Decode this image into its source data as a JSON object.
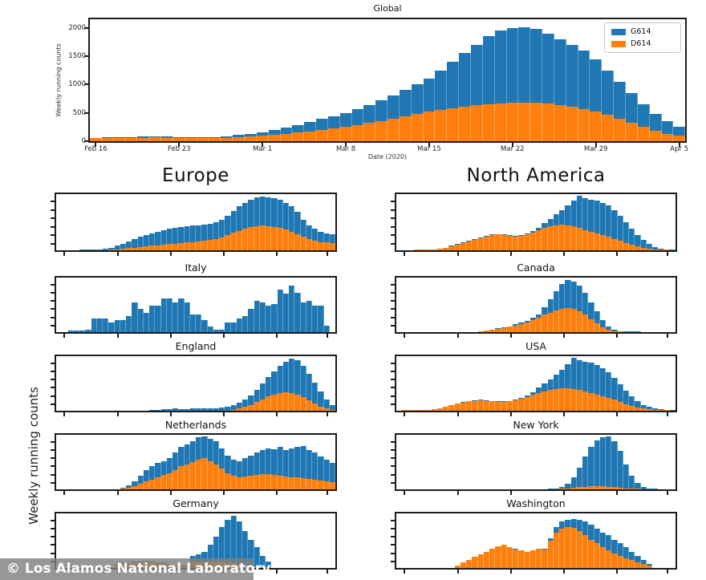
{
  "figure": {
    "watermark": "© Los Alamos National Laboratory",
    "shared_ylabel": "Weekly running counts",
    "colors": {
      "g614": "#1f77b4",
      "d614": "#ff7f0e"
    },
    "legend": {
      "position": "upper right",
      "items": [
        {
          "label": "G614",
          "color": "#1f77b4"
        },
        {
          "label": "D614",
          "color": "#ff7f0e"
        }
      ]
    }
  },
  "chart_data": [
    {
      "title": "Global",
      "type": "bar",
      "stacked": true,
      "xlabel": "Date (2020)",
      "ylabel": "Weekly running counts",
      "x_ticks": [
        "Feb 16",
        "Feb 23",
        "Mar 1",
        "Mar 8",
        "Mar 15",
        "Mar 22",
        "Mar 29",
        "Apr 5"
      ],
      "y_ticks": [
        0,
        500,
        1000,
        1500,
        2000
      ],
      "ymax": 2150,
      "grid": false,
      "series_names": [
        "G614 (top segment = total - D614)",
        "D614 (bottom segment)"
      ],
      "total": [
        60,
        65,
        70,
        75,
        80,
        85,
        80,
        75,
        70,
        70,
        75,
        90,
        110,
        130,
        160,
        200,
        240,
        290,
        340,
        390,
        440,
        500,
        560,
        640,
        720,
        800,
        900,
        1000,
        1100,
        1250,
        1400,
        1550,
        1700,
        1850,
        1950,
        2000,
        2010,
        1980,
        1900,
        1800,
        1700,
        1600,
        1450,
        1250,
        1050,
        850,
        650,
        480,
        350,
        250
      ],
      "d614": [
        50,
        55,
        58,
        60,
        62,
        64,
        62,
        58,
        55,
        52,
        52,
        60,
        70,
        80,
        95,
        110,
        130,
        150,
        175,
        200,
        230,
        260,
        290,
        320,
        360,
        400,
        440,
        480,
        520,
        555,
        585,
        610,
        630,
        650,
        665,
        675,
        680,
        675,
        660,
        640,
        610,
        570,
        520,
        460,
        390,
        320,
        250,
        185,
        130,
        95
      ]
    },
    {
      "title": "Europe",
      "type": "bar",
      "stacked": true,
      "units": "normalized",
      "ymax": 1,
      "total": [
        0,
        0,
        0,
        0,
        0.01,
        0.01,
        0.02,
        0.02,
        0.03,
        0.05,
        0.08,
        0.12,
        0.16,
        0.2,
        0.24,
        0.27,
        0.3,
        0.33,
        0.36,
        0.38,
        0.4,
        0.42,
        0.43,
        0.44,
        0.45,
        0.46,
        0.47,
        0.5,
        0.55,
        0.62,
        0.7,
        0.78,
        0.84,
        0.9,
        0.94,
        0.96,
        0.95,
        0.93,
        0.9,
        0.85,
        0.78,
        0.68,
        0.55,
        0.45,
        0.38,
        0.33,
        0.3,
        0.28
      ],
      "d614": [
        0,
        0,
        0,
        0,
        0,
        0,
        0,
        0,
        0,
        0.01,
        0.02,
        0.03,
        0.04,
        0.05,
        0.06,
        0.07,
        0.08,
        0.09,
        0.1,
        0.11,
        0.12,
        0.13,
        0.14,
        0.15,
        0.16,
        0.17,
        0.18,
        0.2,
        0.23,
        0.27,
        0.31,
        0.35,
        0.38,
        0.41,
        0.43,
        0.44,
        0.43,
        0.42,
        0.4,
        0.37,
        0.33,
        0.28,
        0.24,
        0.2,
        0.17,
        0.15,
        0.14,
        0.13
      ]
    },
    {
      "title": "Italy",
      "type": "bar",
      "stacked": true,
      "units": "normalized",
      "ymax": 1,
      "total": [
        0,
        0,
        0.03,
        0.03,
        0.03,
        0.05,
        0.25,
        0.25,
        0.25,
        0.18,
        0.22,
        0.22,
        0.3,
        0.55,
        0.42,
        0.35,
        0.48,
        0.48,
        0.62,
        0.62,
        0.55,
        0.62,
        0.55,
        0.33,
        0.33,
        0.22,
        0.1,
        0.05,
        0.05,
        0.18,
        0.18,
        0.25,
        0.3,
        0.42,
        0.58,
        0.55,
        0.48,
        0.52,
        0.78,
        0.7,
        0.85,
        0.72,
        0.55,
        0.58,
        0.48,
        0.48,
        0.12,
        0
      ],
      "d614": [
        0,
        0,
        0,
        0,
        0,
        0,
        0,
        0,
        0,
        0,
        0,
        0,
        0,
        0,
        0,
        0,
        0,
        0,
        0,
        0,
        0,
        0,
        0,
        0,
        0,
        0,
        0,
        0,
        0,
        0,
        0,
        0,
        0,
        0,
        0,
        0,
        0,
        0,
        0,
        0,
        0,
        0,
        0,
        0,
        0,
        0,
        0,
        0
      ]
    },
    {
      "title": "England",
      "type": "bar",
      "stacked": true,
      "units": "normalized",
      "ymax": 1,
      "total": [
        0,
        0,
        0,
        0,
        0,
        0,
        0,
        0,
        0,
        0,
        0,
        0,
        0,
        0,
        0,
        0,
        0.02,
        0.02,
        0.03,
        0.03,
        0.04,
        0.03,
        0.03,
        0.04,
        0.04,
        0.04,
        0.05,
        0.05,
        0.06,
        0.08,
        0.1,
        0.14,
        0.2,
        0.28,
        0.38,
        0.5,
        0.62,
        0.72,
        0.82,
        0.9,
        0.95,
        0.92,
        0.82,
        0.68,
        0.52,
        0.36,
        0.2,
        0.1
      ],
      "d614": [
        0,
        0,
        0,
        0,
        0,
        0,
        0,
        0,
        0,
        0,
        0,
        0,
        0,
        0,
        0,
        0,
        0,
        0,
        0,
        0,
        0,
        0,
        0,
        0,
        0,
        0,
        0,
        0,
        0,
        0,
        0.02,
        0.04,
        0.07,
        0.11,
        0.16,
        0.21,
        0.26,
        0.3,
        0.33,
        0.34,
        0.33,
        0.3,
        0.25,
        0.19,
        0.13,
        0.08,
        0.04,
        0.02
      ]
    },
    {
      "title": "Netherlands",
      "type": "bar",
      "stacked": true,
      "units": "normalized",
      "ymax": 1,
      "total": [
        0,
        0,
        0,
        0,
        0,
        0,
        0,
        0,
        0,
        0,
        0,
        0.03,
        0.08,
        0.15,
        0.25,
        0.35,
        0.42,
        0.48,
        0.52,
        0.58,
        0.68,
        0.78,
        0.82,
        0.88,
        0.95,
        0.97,
        0.92,
        0.88,
        0.75,
        0.62,
        0.55,
        0.52,
        0.58,
        0.62,
        0.68,
        0.72,
        0.75,
        0.73,
        0.78,
        0.72,
        0.75,
        0.78,
        0.8,
        0.72,
        0.68,
        0.6,
        0.55,
        0.48
      ],
      "d614": [
        0,
        0,
        0,
        0,
        0,
        0,
        0,
        0,
        0,
        0,
        0,
        0.01,
        0.03,
        0.06,
        0.1,
        0.14,
        0.18,
        0.22,
        0.26,
        0.3,
        0.36,
        0.42,
        0.46,
        0.5,
        0.55,
        0.57,
        0.52,
        0.46,
        0.38,
        0.3,
        0.25,
        0.22,
        0.23,
        0.25,
        0.27,
        0.28,
        0.28,
        0.26,
        0.25,
        0.23,
        0.22,
        0.22,
        0.21,
        0.19,
        0.18,
        0.16,
        0.15,
        0.13
      ]
    },
    {
      "title": "Germany",
      "type": "bar",
      "stacked": true,
      "units": "normalized",
      "ymax": 1,
      "total": [
        0,
        0,
        0,
        0,
        0,
        0,
        0,
        0,
        0,
        0,
        0.08,
        0.1,
        0.11,
        0.12,
        0.12,
        0.13,
        0.12,
        0.11,
        0.1,
        0.08,
        0.05,
        0.04,
        0.04,
        0.22,
        0.25,
        0.3,
        0.42,
        0.58,
        0.75,
        0.88,
        0.95,
        0.85,
        0.68,
        0.52,
        0.38,
        0.22,
        0.12,
        0,
        0,
        0,
        0,
        0,
        0,
        0,
        0,
        0,
        0,
        0
      ],
      "d614": [
        0,
        0,
        0,
        0,
        0,
        0,
        0,
        0,
        0,
        0,
        0.07,
        0.09,
        0.1,
        0.11,
        0.11,
        0.12,
        0.11,
        0.1,
        0.09,
        0.07,
        0.04,
        0.03,
        0.03,
        0.12,
        0.12,
        0.12,
        0.12,
        0.12,
        0.12,
        0.12,
        0.11,
        0.08,
        0.05,
        0.03,
        0.02,
        0.01,
        0.01,
        0,
        0,
        0,
        0,
        0,
        0,
        0,
        0,
        0,
        0,
        0
      ]
    },
    {
      "title": "North America",
      "type": "bar",
      "stacked": true,
      "units": "normalized",
      "ymax": 1,
      "total": [
        0,
        0,
        0,
        0.01,
        0.01,
        0.02,
        0.02,
        0.03,
        0.05,
        0.08,
        0.11,
        0.14,
        0.17,
        0.2,
        0.23,
        0.26,
        0.28,
        0.29,
        0.28,
        0.27,
        0.26,
        0.27,
        0.3,
        0.34,
        0.4,
        0.48,
        0.56,
        0.64,
        0.72,
        0.8,
        0.88,
        0.97,
        0.93,
        0.9,
        0.88,
        0.85,
        0.8,
        0.72,
        0.62,
        0.5,
        0.38,
        0.27,
        0.18,
        0.11,
        0.06,
        0.03,
        0.02,
        0.01
      ],
      "d614": [
        0,
        0,
        0,
        0.01,
        0.01,
        0.02,
        0.02,
        0.03,
        0.05,
        0.07,
        0.1,
        0.13,
        0.16,
        0.19,
        0.22,
        0.25,
        0.27,
        0.28,
        0.27,
        0.26,
        0.25,
        0.26,
        0.28,
        0.32,
        0.36,
        0.4,
        0.43,
        0.45,
        0.46,
        0.45,
        0.43,
        0.4,
        0.36,
        0.33,
        0.3,
        0.27,
        0.24,
        0.2,
        0.17,
        0.13,
        0.1,
        0.07,
        0.05,
        0.03,
        0.02,
        0.01,
        0.01,
        0
      ]
    },
    {
      "title": "Canada",
      "type": "bar",
      "stacked": true,
      "units": "normalized",
      "ymax": 1,
      "total": [
        0,
        0,
        0,
        0,
        0,
        0,
        0,
        0,
        0,
        0,
        0,
        0,
        0,
        0,
        0.02,
        0.03,
        0.05,
        0.07,
        0.09,
        0.11,
        0.14,
        0.17,
        0.21,
        0.26,
        0.33,
        0.45,
        0.6,
        0.75,
        0.88,
        0.95,
        0.92,
        0.85,
        0.72,
        0.55,
        0.38,
        0.22,
        0.1,
        0.04,
        0.02,
        0.01,
        0.01,
        0.01,
        0,
        0,
        0,
        0,
        0,
        0
      ],
      "d614": [
        0,
        0,
        0,
        0,
        0,
        0,
        0,
        0,
        0,
        0,
        0,
        0,
        0,
        0,
        0.02,
        0.03,
        0.04,
        0.06,
        0.08,
        0.1,
        0.12,
        0.15,
        0.18,
        0.22,
        0.27,
        0.32,
        0.36,
        0.4,
        0.43,
        0.44,
        0.42,
        0.38,
        0.32,
        0.24,
        0.16,
        0.09,
        0.04,
        0.02,
        0.01,
        0,
        0,
        0,
        0,
        0,
        0,
        0,
        0,
        0
      ]
    },
    {
      "title": "USA",
      "type": "bar",
      "stacked": true,
      "units": "normalized",
      "ymax": 1,
      "total": [
        0,
        0.01,
        0.01,
        0.02,
        0.02,
        0.02,
        0.03,
        0.05,
        0.08,
        0.11,
        0.14,
        0.16,
        0.18,
        0.19,
        0.2,
        0.19,
        0.18,
        0.17,
        0.17,
        0.18,
        0.2,
        0.24,
        0.28,
        0.34,
        0.42,
        0.5,
        0.58,
        0.66,
        0.75,
        0.85,
        0.97,
        0.93,
        0.9,
        0.88,
        0.84,
        0.78,
        0.7,
        0.6,
        0.48,
        0.37,
        0.27,
        0.18,
        0.11,
        0.07,
        0.04,
        0.03,
        0.02,
        0.01
      ],
      "d614": [
        0,
        0.01,
        0.01,
        0.02,
        0.02,
        0.02,
        0.03,
        0.05,
        0.07,
        0.1,
        0.13,
        0.15,
        0.17,
        0.18,
        0.19,
        0.18,
        0.17,
        0.16,
        0.16,
        0.17,
        0.19,
        0.22,
        0.25,
        0.29,
        0.33,
        0.36,
        0.38,
        0.4,
        0.41,
        0.41,
        0.4,
        0.38,
        0.36,
        0.33,
        0.3,
        0.27,
        0.23,
        0.2,
        0.16,
        0.12,
        0.09,
        0.06,
        0.04,
        0.03,
        0.02,
        0.01,
        0.01,
        0
      ]
    },
    {
      "title": "New York",
      "type": "bar",
      "stacked": true,
      "units": "normalized",
      "ymax": 1,
      "total": [
        0,
        0,
        0,
        0,
        0,
        0,
        0,
        0,
        0,
        0,
        0,
        0,
        0,
        0,
        0,
        0,
        0,
        0,
        0,
        0,
        0,
        0,
        0,
        0,
        0,
        0,
        0.01,
        0.02,
        0.05,
        0.1,
        0.22,
        0.4,
        0.6,
        0.78,
        0.9,
        0.95,
        0.97,
        0.88,
        0.7,
        0.45,
        0.25,
        0.12,
        0.05,
        0.02,
        0.01,
        0,
        0,
        0
      ],
      "d614": [
        0,
        0,
        0,
        0,
        0,
        0,
        0,
        0,
        0,
        0,
        0,
        0,
        0,
        0,
        0,
        0,
        0,
        0,
        0,
        0,
        0,
        0,
        0,
        0,
        0,
        0,
        0,
        0,
        0.01,
        0.02,
        0.03,
        0.04,
        0.05,
        0.06,
        0.06,
        0.06,
        0.05,
        0.04,
        0.03,
        0.02,
        0.01,
        0.01,
        0,
        0,
        0,
        0,
        0,
        0
      ]
    },
    {
      "title": "Washington",
      "type": "bar",
      "stacked": true,
      "units": "normalized",
      "ymax": 1,
      "total": [
        0,
        0,
        0,
        0,
        0,
        0,
        0,
        0,
        0,
        0,
        0.05,
        0.1,
        0.15,
        0.2,
        0.25,
        0.3,
        0.35,
        0.4,
        0.42,
        0.38,
        0.35,
        0.33,
        0.3,
        0.33,
        0.36,
        0.35,
        0.55,
        0.75,
        0.85,
        0.88,
        0.9,
        0.88,
        0.85,
        0.8,
        0.72,
        0.65,
        0.6,
        0.52,
        0.45,
        0.38,
        0.3,
        0.22,
        0.15,
        0.08,
        0,
        0,
        0,
        0
      ],
      "d614": [
        0,
        0,
        0,
        0,
        0,
        0,
        0,
        0,
        0,
        0,
        0.05,
        0.1,
        0.15,
        0.2,
        0.25,
        0.3,
        0.35,
        0.4,
        0.42,
        0.38,
        0.34,
        0.32,
        0.29,
        0.32,
        0.35,
        0.34,
        0.5,
        0.65,
        0.72,
        0.75,
        0.73,
        0.68,
        0.6,
        0.52,
        0.45,
        0.38,
        0.32,
        0.27,
        0.22,
        0.18,
        0.14,
        0.1,
        0.07,
        0.04,
        0,
        0,
        0,
        0
      ]
    }
  ]
}
